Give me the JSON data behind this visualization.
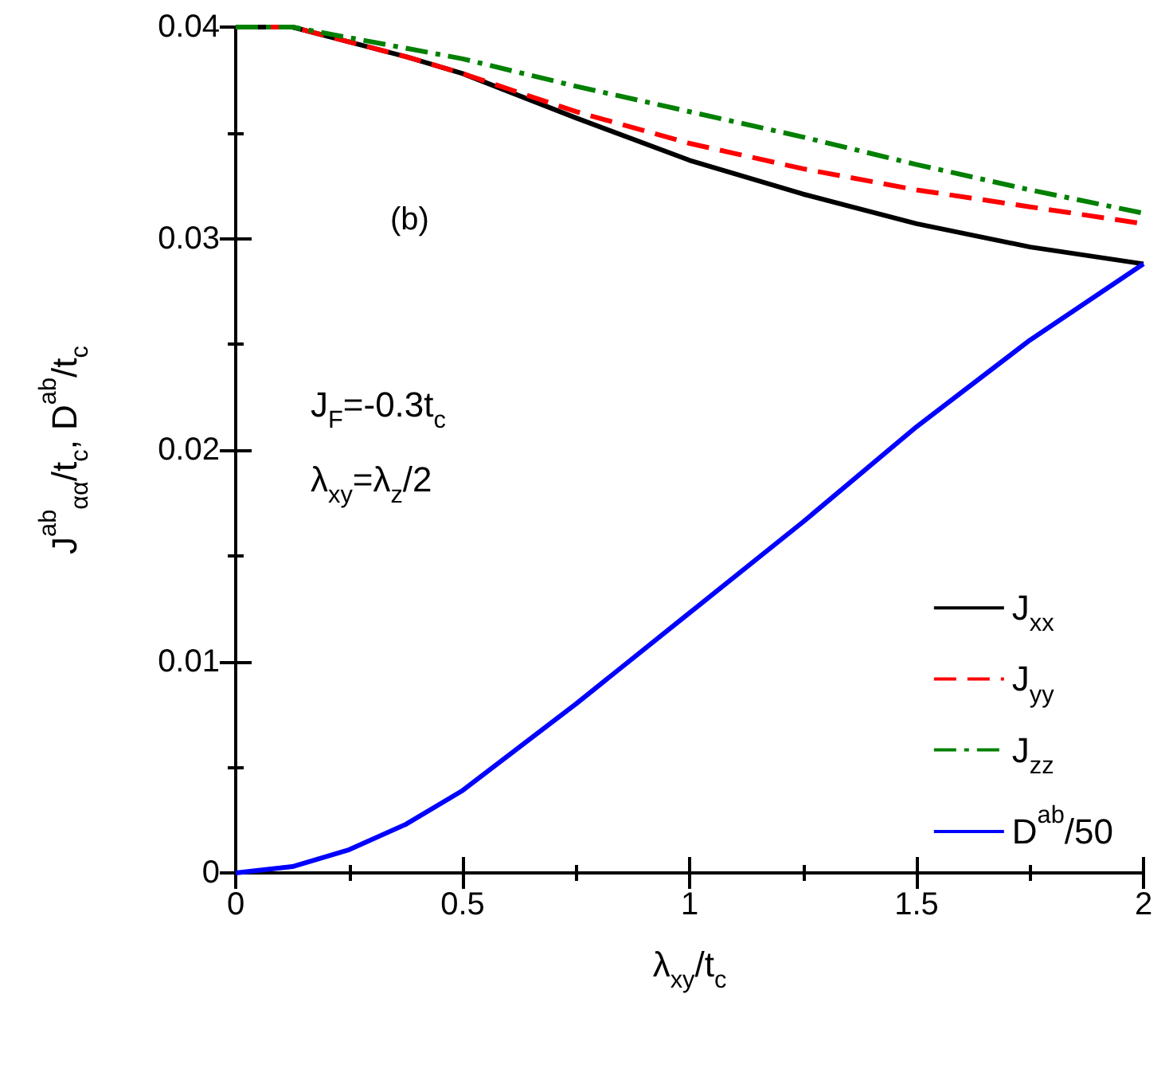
{
  "chart_data": {
    "type": "line",
    "xlabel": "λ$_{xy}$/t$_{c}$",
    "ylabel": "J$^{ab}$$_{αα}$/t$_{c}$, D$^{ab}$/t$_{c}$",
    "x": [
      0,
      0.125,
      0.25,
      0.375,
      0.5,
      0.75,
      1,
      1.25,
      1.5,
      1.75,
      2
    ],
    "series": [
      {
        "name": "J$_{xx}$",
        "color": "#000000",
        "line_style": "solid",
        "values": [
          0.04,
          0.04,
          0.0393,
          0.0386,
          0.0378,
          0.0357,
          0.0337,
          0.0321,
          0.0307,
          0.0296,
          0.0288
        ]
      },
      {
        "name": "J$_{yy}$",
        "color": "#ff0000",
        "line_style": "dashed",
        "values": [
          0.04,
          0.04,
          0.0393,
          0.0386,
          0.0378,
          0.036,
          0.0345,
          0.0333,
          0.0323,
          0.0315,
          0.0307
        ]
      },
      {
        "name": "J$_{zz}$",
        "color": "#008000",
        "line_style": "dashdot",
        "values": [
          0.04,
          0.04,
          0.0395,
          0.039,
          0.0385,
          0.0372,
          0.036,
          0.0348,
          0.0335,
          0.0323,
          0.0312
        ]
      },
      {
        "name": "D$^{ab}$/50",
        "color": "#0000ff",
        "line_style": "solid",
        "values": [
          0,
          0.0003,
          0.0011,
          0.0023,
          0.0039,
          0.008,
          0.0123,
          0.0166,
          0.0211,
          0.0252,
          0.0288
        ]
      }
    ],
    "annotations": [
      "(b)",
      "J$_{F}$=-0.3t$_{c}$",
      "λ$_{xy}$=λ$_{z}$/2"
    ],
    "xlim": [
      0,
      2
    ],
    "xticks": [
      0,
      0.5,
      1,
      1.5,
      2
    ],
    "ylim": [
      0,
      0.04
    ],
    "yticks": [
      0,
      0.01,
      0.02,
      0.03,
      0.04
    ],
    "grid": false,
    "legend": "bottom right",
    "marker": "none"
  }
}
